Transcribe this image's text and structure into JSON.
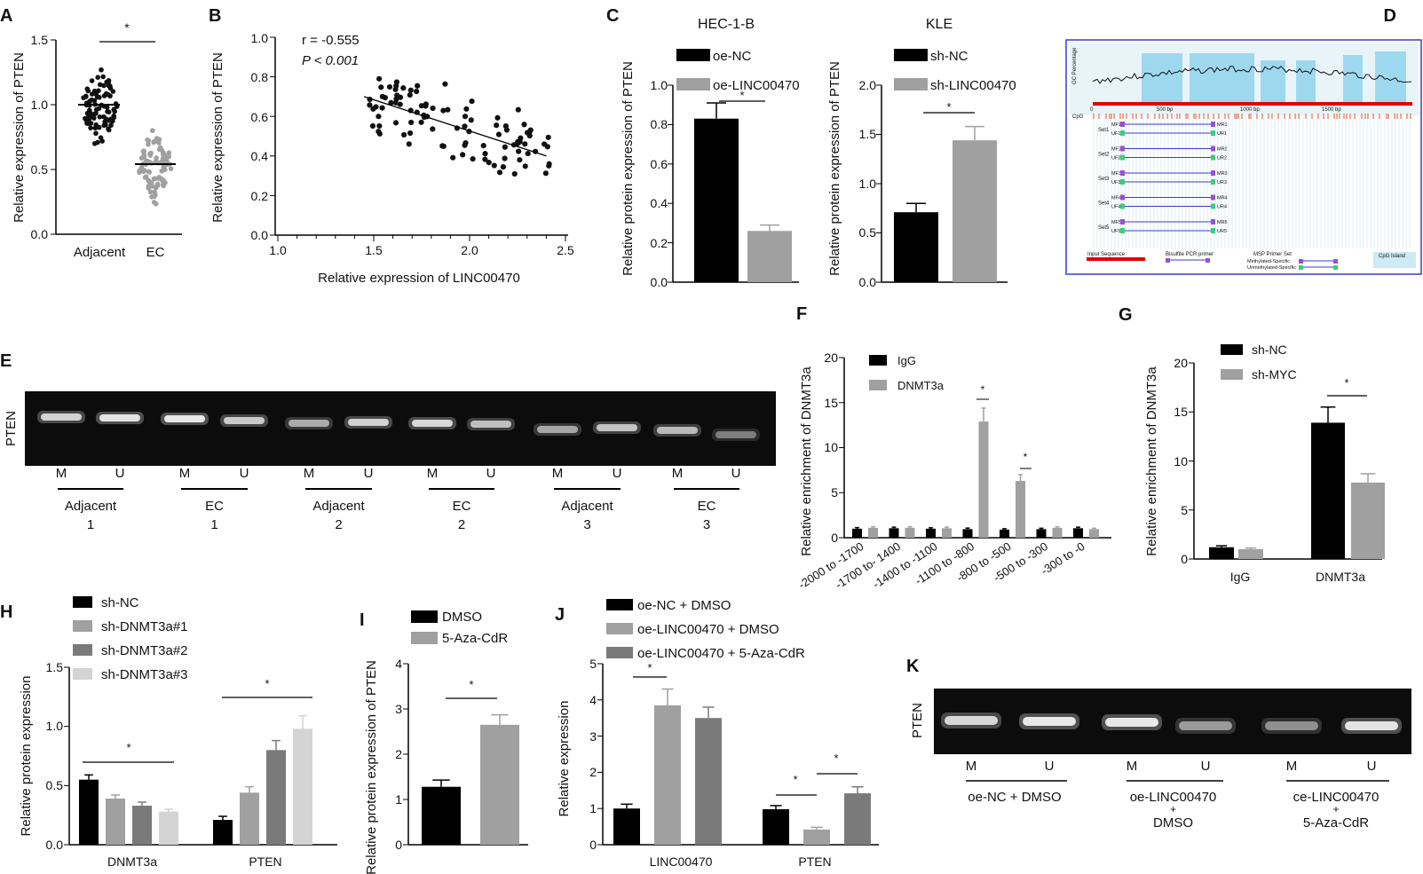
{
  "chart_data": [
    {
      "panel": "A",
      "type": "scatter",
      "ylabel": "Relative expression of PTEN",
      "ylim": [
        0,
        1.5
      ],
      "yticks": [
        "0.0",
        "0.5",
        "1.0",
        "1.5"
      ],
      "categories": [
        "Adjacent",
        "EC"
      ],
      "means": [
        1.0,
        0.54
      ],
      "significance": "*"
    },
    {
      "panel": "B",
      "type": "scatter",
      "xlabel": "Relative expression of LINC00470",
      "ylabel": "Relative expression of PTEN",
      "xlim": [
        1.0,
        2.5
      ],
      "ylim": [
        0.0,
        1.0
      ],
      "xticks": [
        "1.0",
        "1.5",
        "2.0",
        "2.5"
      ],
      "yticks": [
        "0.0",
        "0.2",
        "0.4",
        "0.6",
        "0.8",
        "1.0"
      ],
      "annotation_r": "r = -0.555",
      "annotation_p": "P < 0.001",
      "fit_line": [
        [
          1.45,
          0.7
        ],
        [
          2.4,
          0.4
        ]
      ]
    },
    {
      "panel": "C",
      "type": "bar",
      "title": "HEC-1-B",
      "ylabel": "Relative protein expression of PTEN",
      "ylim": [
        0,
        1.0
      ],
      "yticks": [
        "0.0",
        "0.2",
        "0.4",
        "0.6",
        "0.8",
        "1.0"
      ],
      "series": [
        {
          "name": "oe-NC",
          "value": 0.83,
          "err": 0.08,
          "color": "#000000"
        },
        {
          "name": "oe-LINC00470",
          "value": 0.26,
          "err": 0.03,
          "color": "#a0a0a0"
        }
      ],
      "significance": "*"
    },
    {
      "panel": "C2",
      "type": "bar",
      "title": "KLE",
      "ylabel": "Relative protein expression of PTEN",
      "ylim": [
        0,
        2.0
      ],
      "yticks": [
        "0.0",
        "0.5",
        "1.0",
        "1.5",
        "2.0"
      ],
      "series": [
        {
          "name": "sh-NC",
          "value": 0.71,
          "err": 0.09,
          "color": "#000000"
        },
        {
          "name": "sh-LINC00470",
          "value": 1.44,
          "err": 0.14,
          "color": "#a0a0a0"
        }
      ],
      "significance": "*"
    },
    {
      "panel": "F",
      "type": "bar",
      "ylabel": "Relative enrichment of DNMT3a",
      "ylim": [
        0,
        20
      ],
      "yticks": [
        "0",
        "5",
        "10",
        "15",
        "20"
      ],
      "categories": [
        "-2000 to -1700",
        "-1700 to- 1400",
        "-1400 to -1100",
        "-1100 to -800",
        "-800 to -500",
        "-500 to -300",
        "-300 to -0"
      ],
      "series": [
        {
          "name": "IgG",
          "color": "#000000",
          "values": [
            1.0,
            1.05,
            1.0,
            0.95,
            0.9,
            0.95,
            1.05
          ],
          "errors": [
            0.12,
            0.12,
            0.1,
            0.12,
            0.1,
            0.1,
            0.12
          ]
        },
        {
          "name": "DNMT3a",
          "color": "#a0a0a0",
          "values": [
            1.1,
            1.1,
            1.05,
            12.9,
            6.3,
            1.1,
            0.95
          ],
          "errors": [
            0.12,
            0.12,
            0.12,
            1.5,
            0.7,
            0.12,
            0.1
          ]
        }
      ],
      "significance_labels": [
        "*",
        "*"
      ]
    },
    {
      "panel": "G",
      "type": "bar",
      "ylabel": "Relative enrichment of DNMT3a",
      "ylim": [
        0,
        20
      ],
      "yticks": [
        "0",
        "5",
        "10",
        "15",
        "20"
      ],
      "categories": [
        "IgG",
        "DNMT3a"
      ],
      "series": [
        {
          "name": "sh-NC",
          "color": "#000000",
          "values": [
            1.2,
            13.9
          ],
          "errors": [
            0.15,
            1.6
          ]
        },
        {
          "name": "sh-MYC",
          "color": "#a0a0a0",
          "values": [
            1.0,
            7.8
          ],
          "errors": [
            0.12,
            0.9
          ]
        }
      ],
      "significance": "*"
    },
    {
      "panel": "H",
      "type": "bar",
      "ylabel": "Relative protein expression",
      "ylim": [
        0,
        1.5
      ],
      "yticks": [
        "0.0",
        "0.5",
        "1.0",
        "1.5"
      ],
      "categories": [
        "DNMT3a",
        "PTEN"
      ],
      "series": [
        {
          "name": "sh-NC",
          "color": "#000000",
          "values": [
            0.55,
            0.21
          ],
          "errors": [
            0.04,
            0.03
          ]
        },
        {
          "name": "sh-DNMT3a#1",
          "color": "#a0a0a0",
          "values": [
            0.39,
            0.44
          ],
          "errors": [
            0.03,
            0.05
          ]
        },
        {
          "name": "sh-DNMT3a#2",
          "color": "#7a7a7a",
          "values": [
            0.33,
            0.8
          ],
          "errors": [
            0.03,
            0.08
          ]
        },
        {
          "name": "sh-DNMT3a#3",
          "color": "#d4d4d4",
          "values": [
            0.28,
            0.98
          ],
          "errors": [
            0.02,
            0.11
          ]
        }
      ],
      "significance_labels": [
        "*",
        "*"
      ]
    },
    {
      "panel": "I",
      "type": "bar",
      "ylabel": "Relative protein expression of PTEN",
      "ylim": [
        0,
        4
      ],
      "yticks": [
        "0",
        "1",
        "2",
        "3",
        "4"
      ],
      "series": [
        {
          "name": "DMSO",
          "value": 1.28,
          "err": 0.15,
          "color": "#000000"
        },
        {
          "name": "5-Aza-CdR",
          "value": 2.65,
          "err": 0.22,
          "color": "#a0a0a0"
        }
      ],
      "significance": "*"
    },
    {
      "panel": "J",
      "type": "bar",
      "ylabel": "Relative expression",
      "ylim": [
        0,
        5
      ],
      "yticks": [
        "0",
        "1",
        "2",
        "3",
        "4",
        "5"
      ],
      "categories": [
        "LINC00470",
        "PTEN"
      ],
      "series": [
        {
          "name": "oe-NC + DMSO",
          "color": "#000000",
          "values": [
            1.0,
            0.98
          ],
          "errors": [
            0.12,
            0.1
          ]
        },
        {
          "name": "oe-LINC00470 + DMSO",
          "color": "#a0a0a0",
          "values": [
            3.85,
            0.42
          ],
          "errors": [
            0.45,
            0.06
          ]
        },
        {
          "name": "oe-LINC00470 + 5-Aza-CdR",
          "color": "#7a7a7a",
          "values": [
            3.5,
            1.42
          ],
          "errors": [
            0.3,
            0.18
          ]
        }
      ],
      "significance_labels": [
        "*",
        "*",
        "*"
      ]
    }
  ],
  "panels": {
    "A": {
      "letter": "A",
      "xticks": [
        "Adjacent",
        "EC"
      ]
    },
    "B": {
      "letter": "B"
    },
    "C": {
      "letter": "C"
    },
    "D": {
      "letter": "D",
      "track_label": "GC Percentage",
      "cpg_label": "CpG",
      "ticks": [
        "0",
        "500 bp",
        "1000 bp",
        "1500 bp"
      ],
      "sets": [
        "Set1",
        "Set2",
        "Set3",
        "Set4",
        "Set5"
      ],
      "primers_left_m": [
        "MF1",
        "MF2",
        "MF3",
        "MF4",
        "MF5"
      ],
      "primers_left_u": [
        "UF1",
        "UF2",
        "UF3",
        "UF4",
        "UF5"
      ],
      "primers_right_m": [
        "MR1",
        "MR2",
        "MR3",
        "MR4",
        "MR5"
      ],
      "primers_right_u": [
        "UR1",
        "UR2",
        "UR3",
        "UR4",
        "UR5"
      ],
      "legend": {
        "input": "Input Sequence",
        "bisulfite": "Bisulfite PCR primer",
        "msp": "MSP Primer Set",
        "methylated": "Methylated-Specific",
        "unmethylated": "Unmethylated-Specific",
        "cpg_island": "CpG Island"
      }
    },
    "E": {
      "letter": "E",
      "gel_label": "PTEN",
      "lanes": [
        "M",
        "U",
        "M",
        "U",
        "M",
        "U",
        "M",
        "U",
        "M",
        "U",
        "M",
        "U"
      ],
      "groups": [
        {
          "line1": "Adjacent",
          "line2": "1"
        },
        {
          "line1": "EC",
          "line2": "1"
        },
        {
          "line1": "Adjacent",
          "line2": "2"
        },
        {
          "line1": "EC",
          "line2": "2"
        },
        {
          "line1": "Adjacent",
          "line2": "3"
        },
        {
          "line1": "EC",
          "line2": "3"
        }
      ]
    },
    "F": {
      "letter": "F"
    },
    "G": {
      "letter": "G"
    },
    "H": {
      "letter": "H"
    },
    "I": {
      "letter": "I"
    },
    "J": {
      "letter": "J"
    },
    "K": {
      "letter": "K",
      "gel_label": "PTEN",
      "lanes": [
        "M",
        "U",
        "M",
        "U",
        "M",
        "U"
      ],
      "groups": [
        {
          "line1": "oe-NC + DMSO",
          "line2": "",
          "line3": ""
        },
        {
          "line1": "oe-LINC00470",
          "line2": "+",
          "line3": "DMSO"
        },
        {
          "line1": "ce-LINC00470",
          "line2": "+",
          "line3": "5-Aza-CdR"
        }
      ]
    }
  }
}
